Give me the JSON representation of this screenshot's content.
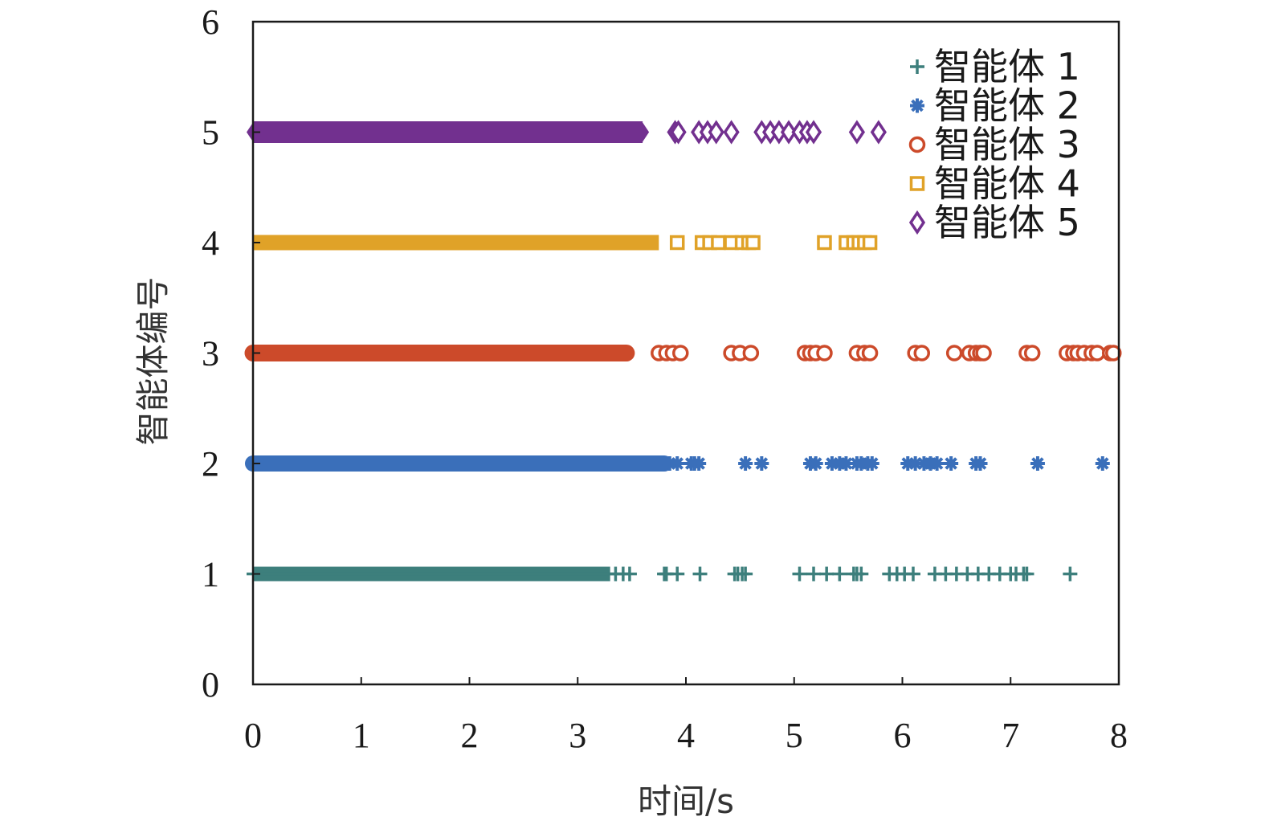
{
  "chart_data": {
    "type": "scatter",
    "xlabel": "时间/s",
    "ylabel": "智能体编号",
    "xlim": [
      0,
      8
    ],
    "ylim": [
      0,
      6
    ],
    "x_ticks": [
      "0",
      "1",
      "2",
      "3",
      "4",
      "5",
      "6",
      "7",
      "8"
    ],
    "y_ticks": [
      "0",
      "1",
      "2",
      "3",
      "4",
      "5",
      "6"
    ],
    "grid": false,
    "legend_position": "top-right",
    "series": [
      {
        "name": "智能体 1",
        "agent": 1,
        "marker": "plus",
        "color": "#3d7f7c",
        "dense_range": [
          0.0,
          3.3
        ],
        "events": [
          3.35,
          3.42,
          3.48,
          3.8,
          3.82,
          3.92,
          4.13,
          4.45,
          4.48,
          4.52,
          4.55,
          5.05,
          5.18,
          5.3,
          5.42,
          5.55,
          5.58,
          5.62,
          5.88,
          5.95,
          6.02,
          6.1,
          6.3,
          6.4,
          6.5,
          6.6,
          6.7,
          6.8,
          6.9,
          7.0,
          7.05,
          7.12,
          7.15,
          7.55
        ]
      },
      {
        "name": "智能体 2",
        "agent": 2,
        "marker": "asterisk",
        "color": "#3a6fba",
        "dense_range": [
          0.0,
          3.8
        ],
        "events": [
          3.85,
          3.92,
          4.05,
          4.08,
          4.12,
          4.55,
          4.7,
          5.15,
          5.2,
          5.35,
          5.42,
          5.48,
          5.58,
          5.62,
          5.68,
          5.72,
          6.05,
          6.12,
          6.2,
          6.26,
          6.32,
          6.45,
          6.68,
          6.72,
          7.25,
          7.85
        ]
      },
      {
        "name": "智能体 3",
        "agent": 3,
        "marker": "circle",
        "color": "#cc4a2a",
        "dense_range": [
          0.0,
          3.45
        ],
        "events": [
          3.75,
          3.82,
          3.88,
          3.95,
          4.42,
          4.5,
          4.6,
          5.1,
          5.15,
          5.2,
          5.28,
          5.58,
          5.65,
          5.7,
          6.12,
          6.18,
          6.48,
          6.62,
          6.68,
          6.72,
          6.75,
          7.15,
          7.2,
          7.52,
          7.58,
          7.62,
          7.68,
          7.75,
          7.8,
          7.92,
          7.95
        ]
      },
      {
        "name": "智能体 4",
        "agent": 4,
        "marker": "square",
        "color": "#e0a228",
        "dense_range": [
          0.0,
          3.75
        ],
        "events": [
          3.92,
          4.15,
          4.22,
          4.3,
          4.42,
          4.52,
          4.58,
          4.62,
          5.28,
          5.48,
          5.55,
          5.6,
          5.65,
          5.7
        ]
      },
      {
        "name": "智能体 5",
        "agent": 5,
        "marker": "diamond",
        "color": "#72308f",
        "dense_range": [
          0.0,
          3.6
        ],
        "events": [
          3.9,
          3.93,
          4.12,
          4.2,
          4.28,
          4.42,
          4.7,
          4.78,
          4.86,
          4.95,
          5.05,
          5.12,
          5.18,
          5.58,
          5.78
        ]
      }
    ]
  }
}
